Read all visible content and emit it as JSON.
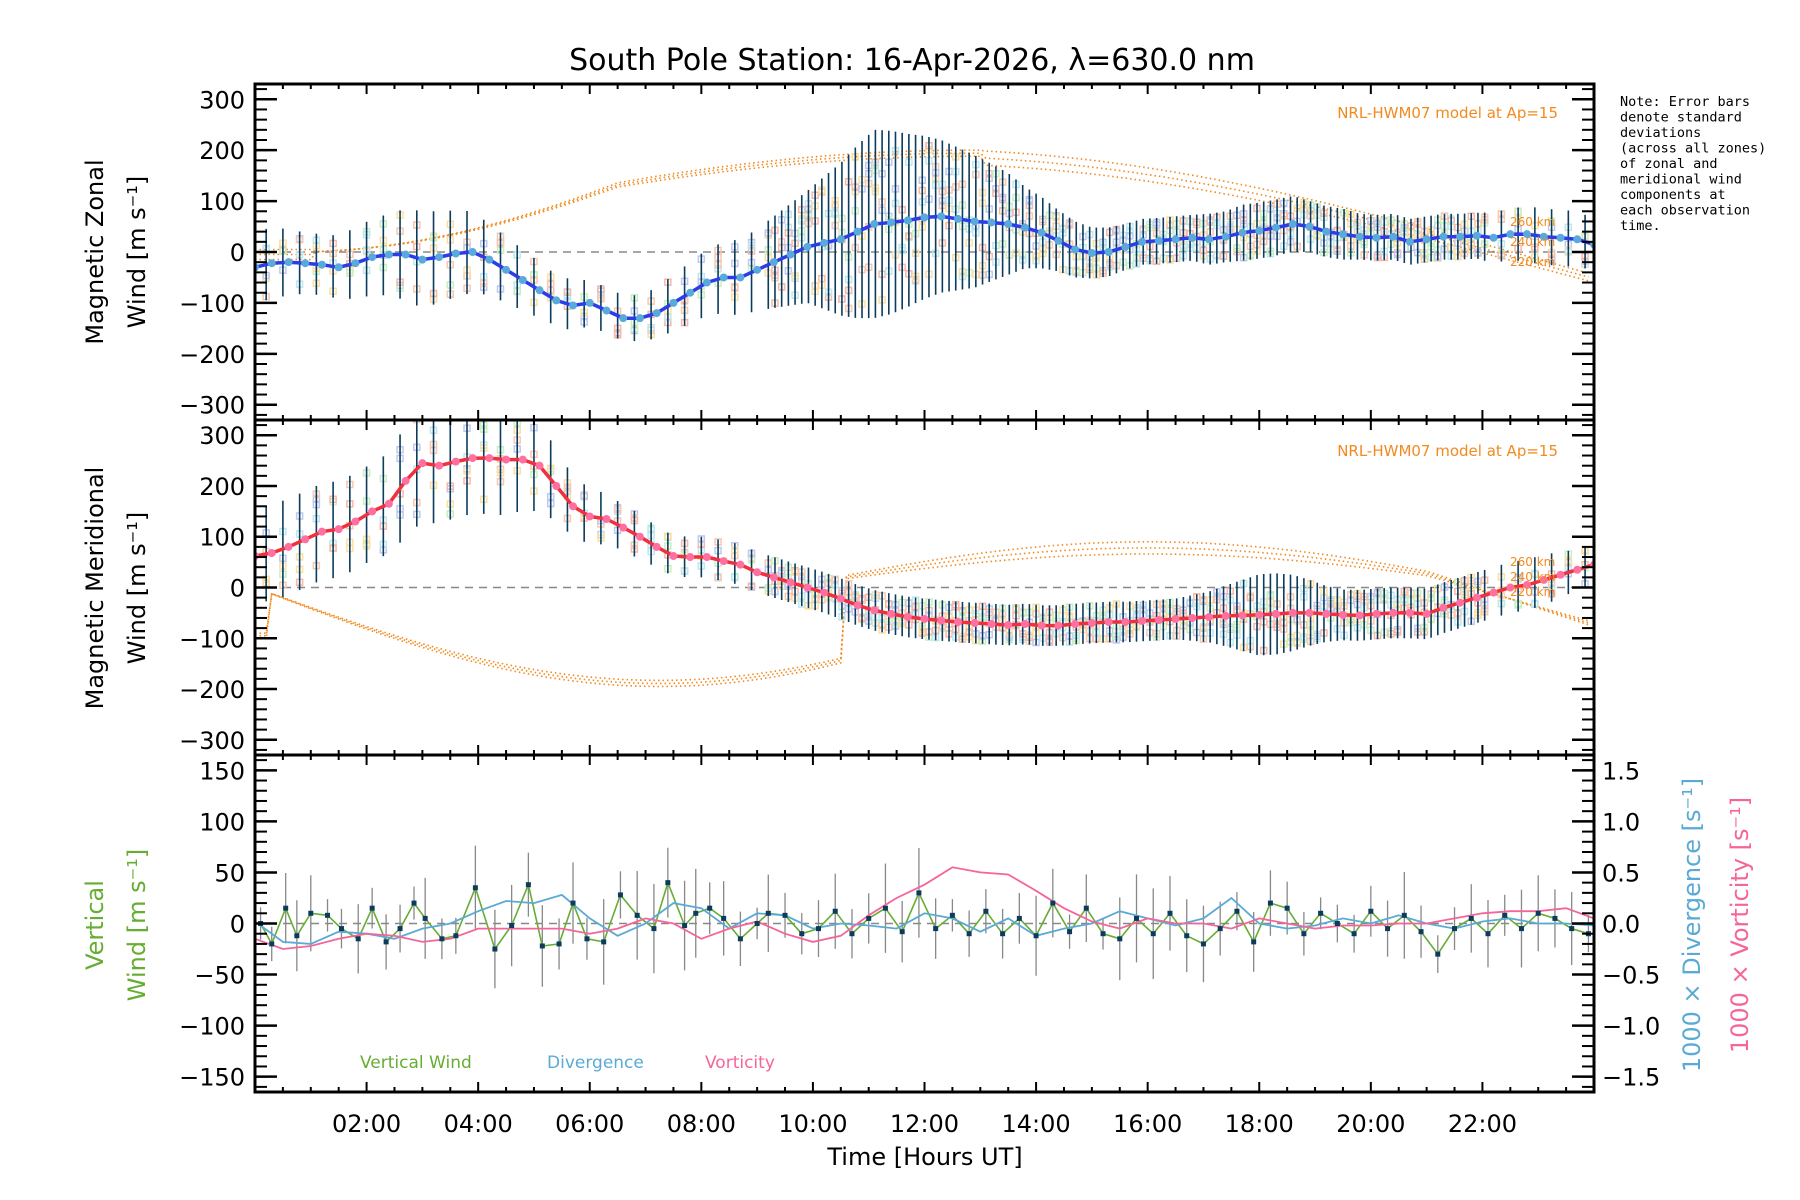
{
  "chart_data": [
    {
      "type": "line",
      "panel": "zonal",
      "title": "South Pole Station: 16-Apr-2026, λ=630.0 nm",
      "ylabel_line1": "Magnetic Zonal",
      "ylabel_line2": "Wind [m s⁻¹]",
      "xlabel": "",
      "xlim": [
        0,
        24
      ],
      "ylim": [
        -330,
        330
      ],
      "yticks": [
        300,
        200,
        100,
        0,
        -100,
        -200,
        -300
      ],
      "ytick_labels": [
        "300",
        "200",
        "100",
        "0",
        "−100",
        "−200",
        "−300"
      ],
      "zero_line": "dashed",
      "model_label": "NRL-HWM07 model at Ap=15",
      "model_altitudes": [
        "260 km",
        "240 km",
        "220 km"
      ],
      "series": [
        {
          "name": "Zonal wind (mean)",
          "color": "#2b3de8",
          "marker_color": "#5aa9dc",
          "x": [
            0.0,
            0.3,
            0.6,
            0.9,
            1.2,
            1.5,
            1.8,
            2.1,
            2.4,
            2.7,
            3.0,
            3.3,
            3.6,
            3.9,
            4.2,
            4.5,
            4.8,
            5.1,
            5.4,
            5.7,
            6.0,
            6.3,
            6.6,
            6.9,
            7.2,
            7.5,
            7.8,
            8.1,
            8.4,
            8.7,
            9.0,
            9.3,
            9.6,
            9.9,
            10.2,
            10.5,
            10.8,
            11.1,
            11.4,
            11.7,
            12.0,
            12.3,
            12.6,
            12.9,
            13.2,
            13.5,
            13.8,
            14.1,
            14.4,
            14.7,
            15.0,
            15.3,
            15.6,
            15.9,
            16.2,
            16.5,
            16.8,
            17.1,
            17.4,
            17.7,
            18.0,
            18.3,
            18.6,
            18.9,
            19.2,
            19.5,
            19.8,
            20.1,
            20.4,
            20.7,
            21.0,
            21.3,
            21.6,
            21.9,
            22.2,
            22.5,
            22.8,
            23.1,
            23.4,
            23.7,
            24.0
          ],
          "y": [
            -30,
            -22,
            -20,
            -22,
            -25,
            -30,
            -22,
            -10,
            -5,
            -5,
            -15,
            -10,
            -3,
            0,
            -15,
            -35,
            -55,
            -75,
            -95,
            -105,
            -100,
            -115,
            -130,
            -130,
            -120,
            -100,
            -80,
            -60,
            -50,
            -50,
            -35,
            -20,
            -5,
            10,
            18,
            25,
            40,
            55,
            58,
            62,
            68,
            70,
            65,
            60,
            58,
            55,
            48,
            38,
            22,
            5,
            -2,
            0,
            10,
            20,
            22,
            25,
            28,
            25,
            30,
            38,
            42,
            48,
            55,
            50,
            40,
            35,
            30,
            28,
            30,
            20,
            25,
            30,
            30,
            32,
            28,
            35,
            35,
            30,
            28,
            25,
            15
          ]
        }
      ],
      "error_bar_half_width": [
        70,
        70,
        65,
        60,
        60,
        62,
        70,
        75,
        80,
        90,
        95,
        90,
        85,
        80,
        70,
        65,
        60,
        55,
        50,
        50,
        45,
        45,
        45,
        45,
        50,
        55,
        60,
        65,
        70,
        75,
        80,
        90,
        100,
        110,
        130,
        150,
        170,
        185,
        180,
        170,
        160,
        150,
        140,
        130,
        115,
        100,
        80,
        70,
        60,
        55,
        50,
        48,
        45,
        45,
        45,
        45,
        45,
        50,
        50,
        55,
        55,
        55,
        55,
        50,
        50,
        50,
        45,
        45,
        45,
        45,
        45,
        45,
        45,
        45,
        50,
        50,
        55,
        55,
        55,
        55,
        50
      ]
    },
    {
      "type": "line",
      "panel": "meridional",
      "ylabel_line1": "Magnetic Meridional",
      "ylabel_line2": "Wind [m s⁻¹]",
      "xlim": [
        0,
        24
      ],
      "ylim": [
        -330,
        330
      ],
      "yticks": [
        300,
        200,
        100,
        0,
        -100,
        -200,
        -300
      ],
      "ytick_labels": [
        "300",
        "200",
        "100",
        "0",
        "−100",
        "−200",
        "−300"
      ],
      "zero_line": "dashed",
      "model_label": "NRL-HWM07 model at Ap=15",
      "model_altitudes": [
        "260 km",
        "240 km",
        "220 km"
      ],
      "series": [
        {
          "name": "Meridional wind (mean)",
          "color": "#f0303c",
          "marker_color": "#ff6fa0",
          "x": [
            0.0,
            0.3,
            0.6,
            0.9,
            1.2,
            1.5,
            1.8,
            2.1,
            2.4,
            2.7,
            3.0,
            3.3,
            3.6,
            3.9,
            4.2,
            4.5,
            4.8,
            5.1,
            5.4,
            5.7,
            6.0,
            6.3,
            6.6,
            6.9,
            7.2,
            7.5,
            7.8,
            8.1,
            8.4,
            8.7,
            9.0,
            9.3,
            9.6,
            9.9,
            10.2,
            10.5,
            10.8,
            11.1,
            11.4,
            11.7,
            12.0,
            12.3,
            12.6,
            12.9,
            13.2,
            13.5,
            13.8,
            14.1,
            14.4,
            14.7,
            15.0,
            15.3,
            15.6,
            15.9,
            16.2,
            16.5,
            16.8,
            17.1,
            17.4,
            17.7,
            18.0,
            18.3,
            18.6,
            18.9,
            19.2,
            19.5,
            19.8,
            20.1,
            20.4,
            20.7,
            21.0,
            21.3,
            21.6,
            21.9,
            22.2,
            22.5,
            22.8,
            23.1,
            23.4,
            23.7,
            24.0
          ],
          "y": [
            62,
            68,
            80,
            95,
            110,
            115,
            130,
            150,
            165,
            210,
            245,
            240,
            248,
            255,
            255,
            252,
            252,
            240,
            200,
            160,
            140,
            135,
            118,
            100,
            80,
            62,
            60,
            60,
            52,
            45,
            30,
            20,
            10,
            0,
            -10,
            -22,
            -35,
            -45,
            -52,
            -58,
            -62,
            -65,
            -68,
            -70,
            -72,
            -74,
            -72,
            -75,
            -75,
            -72,
            -70,
            -68,
            -68,
            -66,
            -64,
            -62,
            -60,
            -58,
            -56,
            -55,
            -54,
            -52,
            -50,
            -50,
            -52,
            -54,
            -55,
            -52,
            -50,
            -50,
            -52,
            -40,
            -30,
            -20,
            -10,
            0,
            5,
            15,
            25,
            35,
            45
          ]
        }
      ],
      "error_bar_half_width": [
        90,
        95,
        95,
        95,
        95,
        95,
        95,
        95,
        100,
        110,
        115,
        115,
        110,
        110,
        110,
        110,
        100,
        90,
        70,
        60,
        55,
        50,
        45,
        45,
        40,
        40,
        40,
        40,
        40,
        40,
        40,
        40,
        40,
        40,
        40,
        40,
        40,
        40,
        40,
        40,
        40,
        40,
        40,
        40,
        40,
        40,
        40,
        40,
        40,
        40,
        40,
        40,
        40,
        40,
        40,
        40,
        45,
        50,
        60,
        70,
        80,
        80,
        75,
        65,
        55,
        50,
        50,
        50,
        50,
        50,
        50,
        50,
        50,
        50,
        50,
        50,
        50,
        50,
        45,
        40,
        40
      ]
    },
    {
      "type": "line",
      "panel": "vertical",
      "ylabel_line1": "Vertical",
      "ylabel_line2": "Wind [m s⁻¹]",
      "y2label_div": "1000 × Divergence [s⁻¹]",
      "y2label_vort": "1000 × Vorticity [s⁻¹]",
      "xlabel": "Time [Hours UT]",
      "xlim": [
        0,
        24
      ],
      "ylim": [
        -165,
        165
      ],
      "yticks": [
        150,
        100,
        50,
        0,
        -50,
        -100,
        -150
      ],
      "ytick_labels": [
        "150",
        "100",
        "50",
        "0",
        "−50",
        "−100",
        "−150"
      ],
      "y2lim": [
        -1.65,
        1.65
      ],
      "y2ticks": [
        1.5,
        1.0,
        0.5,
        0.0,
        -0.5,
        -1.0,
        -1.5
      ],
      "y2tick_labels": [
        "1.5",
        "1.0",
        "0.5",
        "0.0",
        "−0.5",
        "−1.0",
        "−1.5"
      ],
      "xticks": [
        2,
        4,
        6,
        8,
        10,
        12,
        14,
        16,
        18,
        20,
        22
      ],
      "xtick_labels": [
        "02:00",
        "04:00",
        "06:00",
        "08:00",
        "10:00",
        "12:00",
        "14:00",
        "16:00",
        "18:00",
        "20:00",
        "22:00"
      ],
      "zero_line": "dashed",
      "legend": [
        {
          "label": "Vertical Wind",
          "color": "#66ad33"
        },
        {
          "label": "Divergence",
          "color": "#5aaad6"
        },
        {
          "label": "Vorticity",
          "color": "#f5659a"
        }
      ],
      "series": [
        {
          "name": "Vertical Wind",
          "axis": "left",
          "color": "#66ad33",
          "marker_color": "#0b3c5d",
          "x": [
            0.1,
            0.3,
            0.55,
            0.75,
            1.0,
            1.3,
            1.55,
            1.85,
            2.1,
            2.35,
            2.6,
            2.85,
            3.05,
            3.35,
            3.6,
            3.95,
            4.3,
            4.6,
            4.9,
            5.15,
            5.45,
            5.7,
            5.95,
            6.25,
            6.55,
            6.85,
            7.15,
            7.4,
            7.7,
            7.9,
            8.15,
            8.4,
            8.7,
            9.0,
            9.2,
            9.5,
            9.8,
            10.1,
            10.4,
            10.7,
            11.0,
            11.3,
            11.6,
            11.9,
            12.2,
            12.5,
            12.8,
            13.1,
            13.4,
            13.7,
            14.0,
            14.3,
            14.6,
            14.9,
            15.2,
            15.5,
            15.8,
            16.1,
            16.4,
            16.7,
            17.0,
            17.3,
            17.6,
            17.9,
            18.2,
            18.5,
            18.8,
            19.1,
            19.4,
            19.7,
            20.0,
            20.3,
            20.6,
            20.9,
            21.2,
            21.5,
            21.8,
            22.1,
            22.4,
            22.7,
            23.0,
            23.3,
            23.6,
            23.9
          ],
          "y": [
            0,
            -20,
            15,
            -12,
            10,
            8,
            -5,
            -15,
            15,
            -18,
            -5,
            20,
            5,
            -15,
            -12,
            35,
            -25,
            -2,
            38,
            -22,
            -20,
            20,
            -15,
            -18,
            28,
            8,
            -5,
            40,
            -2,
            10,
            15,
            5,
            -15,
            0,
            10,
            8,
            -10,
            -5,
            12,
            -10,
            5,
            15,
            -8,
            30,
            -5,
            8,
            -10,
            12,
            -10,
            5,
            -12,
            20,
            -8,
            15,
            -10,
            -15,
            5,
            -10,
            10,
            -12,
            -20,
            -5,
            12,
            -18,
            20,
            15,
            -10,
            10,
            0,
            -10,
            12,
            -5,
            8,
            -8,
            -30,
            -5,
            5,
            -10,
            8,
            -5,
            10,
            5,
            -5,
            -10
          ]
        },
        {
          "name": "Divergence",
          "axis": "right",
          "color": "#5aaad6",
          "x": [
            0.0,
            0.5,
            1.0,
            1.5,
            2.0,
            2.5,
            3.0,
            3.5,
            4.0,
            4.5,
            5.0,
            5.5,
            6.0,
            6.5,
            7.0,
            7.5,
            8.0,
            8.5,
            9.0,
            9.5,
            10.0,
            10.5,
            11.0,
            11.5,
            12.0,
            12.5,
            13.0,
            13.5,
            14.0,
            14.5,
            15.0,
            15.5,
            16.0,
            16.5,
            17.0,
            17.5,
            18.0,
            18.5,
            19.0,
            19.5,
            20.0,
            20.5,
            21.0,
            21.5,
            22.0,
            22.5,
            23.0,
            23.5,
            24.0
          ],
          "y": [
            0.02,
            -0.18,
            -0.2,
            -0.08,
            -0.1,
            -0.15,
            -0.05,
            0.0,
            0.12,
            0.22,
            0.2,
            0.28,
            0.05,
            -0.12,
            0.0,
            0.2,
            0.15,
            -0.05,
            0.1,
            0.08,
            -0.05,
            0.0,
            -0.02,
            -0.05,
            0.1,
            0.05,
            -0.08,
            0.05,
            -0.12,
            -0.05,
            0.0,
            0.12,
            0.05,
            -0.02,
            0.05,
            0.25,
            0.0,
            -0.05,
            -0.02,
            0.05,
            0.0,
            0.08,
            0.0,
            -0.05,
            0.02,
            0.05,
            0.0,
            0.0,
            -0.02
          ]
        },
        {
          "name": "Vorticity",
          "axis": "right",
          "color": "#f5659a",
          "x": [
            0.0,
            0.5,
            1.0,
            1.5,
            2.0,
            2.5,
            3.0,
            3.5,
            4.0,
            4.5,
            5.0,
            5.5,
            6.0,
            6.5,
            7.0,
            7.5,
            8.0,
            8.5,
            9.0,
            9.5,
            10.0,
            10.5,
            11.0,
            11.5,
            12.0,
            12.5,
            13.0,
            13.5,
            14.0,
            14.5,
            15.0,
            15.5,
            16.0,
            16.5,
            17.0,
            17.5,
            18.0,
            18.5,
            19.0,
            19.5,
            20.0,
            20.5,
            21.0,
            21.5,
            22.0,
            22.5,
            23.0,
            23.5,
            24.0
          ],
          "y": [
            -0.15,
            -0.25,
            -0.22,
            -0.15,
            -0.1,
            -0.12,
            -0.18,
            -0.15,
            -0.05,
            -0.05,
            -0.05,
            -0.05,
            -0.1,
            -0.05,
            0.05,
            0.0,
            -0.15,
            -0.05,
            0.02,
            -0.1,
            -0.18,
            -0.12,
            0.08,
            0.25,
            0.38,
            0.55,
            0.5,
            0.48,
            0.32,
            0.15,
            0.02,
            -0.05,
            0.05,
            0.0,
            0.0,
            -0.05,
            0.05,
            0.0,
            -0.05,
            -0.02,
            -0.02,
            0.0,
            0.0,
            0.05,
            0.1,
            0.12,
            0.12,
            0.15,
            0.05
          ]
        }
      ]
    }
  ],
  "note": [
    "Note: Error bars",
    "denote standard",
    "deviations",
    "(across all zones)",
    "of zonal and",
    "meridional wind",
    "components at",
    "each observation",
    "time."
  ]
}
